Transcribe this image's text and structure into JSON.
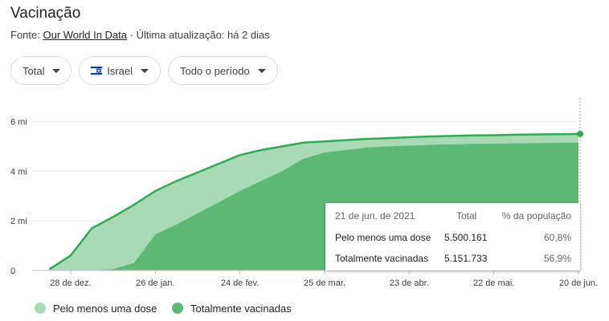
{
  "title": "Vacinação",
  "source_prefix": "Fonte:",
  "source_link": "Our World In Data",
  "source_suffix": "· Última atualização: há 2 dias",
  "filters": [
    "Total",
    "Israel",
    "Todo o período"
  ],
  "chart_data": {
    "type": "area",
    "categories": [
      null,
      "28 de dez.",
      null,
      null,
      null,
      "26 de jan.",
      null,
      null,
      null,
      "24 de fev.",
      null,
      null,
      null,
      "25 de mar.",
      null,
      null,
      null,
      "23 de abr.",
      null,
      null,
      null,
      "22 de mai.",
      null,
      null,
      null,
      "20 de jun."
    ],
    "series": [
      {
        "name": "Pelo menos uma dose",
        "color": "#a8dab5",
        "line_color": "#34a853",
        "values": [
          50000,
          600000,
          1700000,
          2150000,
          2650000,
          3200000,
          3600000,
          3950000,
          4300000,
          4650000,
          4850000,
          5000000,
          5150000,
          5200000,
          5250000,
          5300000,
          5330000,
          5370000,
          5400000,
          5420000,
          5440000,
          5450000,
          5470000,
          5480000,
          5490000,
          5500161
        ]
      },
      {
        "name": "Totalmente vacinadas",
        "color": "#5bb974",
        "line_color": "#5bb974",
        "values": [
          0,
          0,
          0,
          50000,
          300000,
          1450000,
          1850000,
          2300000,
          2750000,
          3200000,
          3600000,
          4000000,
          4500000,
          4750000,
          4850000,
          4950000,
          5000000,
          5030000,
          5060000,
          5080000,
          5100000,
          5110000,
          5120000,
          5130000,
          5140000,
          5151733
        ]
      }
    ],
    "ylim": [
      0,
      6500000
    ],
    "yticks": [
      0,
      {
        "value": 2000000,
        "label": "2 mi"
      },
      {
        "value": 4000000,
        "label": "4 mi"
      },
      {
        "value": 6000000,
        "label": "6 mi"
      }
    ],
    "grid": true,
    "tooltip": {
      "date": "21 de jun. de 2021",
      "headers": [
        "Total",
        "% da população"
      ],
      "rows": [
        [
          "Pelo menos uma dose",
          "5.500.161",
          "60,8%"
        ],
        [
          "Totalmente vacinadas",
          "5.151.733",
          "56,9%"
        ]
      ]
    }
  }
}
